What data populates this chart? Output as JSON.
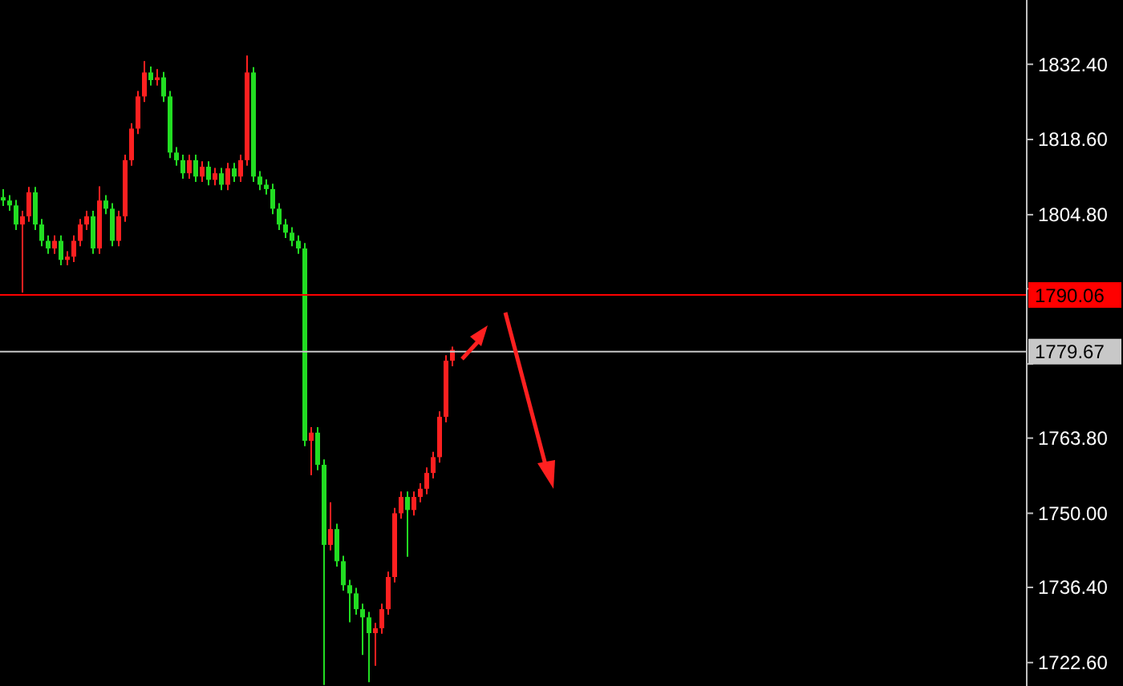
{
  "chart_data": {
    "type": "candlestick",
    "categories": [
      null,
      null,
      null,
      null,
      null,
      null,
      null,
      null,
      null,
      null,
      null,
      null,
      null,
      null,
      null,
      null,
      null,
      null,
      null,
      null,
      null,
      null,
      null,
      null,
      null,
      null,
      null,
      null,
      null,
      null,
      null,
      null,
      null,
      null,
      null,
      null,
      null,
      null,
      null,
      null,
      null,
      null,
      null,
      null,
      null,
      null,
      null,
      null,
      null,
      null,
      null,
      null,
      null,
      null,
      null,
      null,
      null,
      null,
      null,
      null,
      null,
      null,
      null,
      null,
      null,
      null,
      null,
      null,
      null,
      null,
      null,
      null,
      null,
      null,
      null,
      null,
      null,
      null,
      null,
      null,
      null,
      null,
      null,
      null,
      null,
      null,
      null,
      null,
      null,
      null,
      null,
      null,
      null,
      null,
      null,
      null,
      null,
      null,
      null,
      null,
      null,
      null,
      null,
      null,
      null,
      null,
      null,
      null,
      null,
      null,
      null,
      null,
      null,
      null,
      null,
      null,
      null,
      null,
      null,
      null,
      null,
      null,
      null,
      null,
      null,
      null,
      null,
      null,
      null,
      null,
      null,
      null,
      null,
      null,
      null,
      null,
      null,
      null,
      null,
      null,
      null,
      null,
      null,
      null,
      null,
      null,
      null,
      null,
      null,
      null,
      null,
      null,
      null,
      null,
      null,
      null,
      null,
      null,
      null,
      null
    ],
    "ohlc": [
      [
        1808.0,
        1809.5,
        1806.4,
        1807.4
      ],
      [
        1807.4,
        1808.4,
        1805.5,
        1806.5
      ],
      [
        1806.5,
        1807.5,
        1802.0,
        1803.0
      ],
      [
        1803.0,
        1805.5,
        1790.5,
        1804.5
      ],
      [
        1804.5,
        1809.9,
        1803.5,
        1808.9
      ],
      [
        1808.9,
        1809.9,
        1802.0,
        1803.0
      ],
      [
        1803.0,
        1804.0,
        1799.0,
        1800.0
      ],
      [
        1800.0,
        1801.0,
        1797.6,
        1798.6
      ],
      [
        1798.6,
        1801.0,
        1797.6,
        1800.0
      ],
      [
        1800.0,
        1801.0,
        1795.5,
        1796.5
      ],
      [
        1796.5,
        1798.1,
        1795.5,
        1797.1
      ],
      [
        1797.1,
        1801.0,
        1796.1,
        1800.0
      ],
      [
        1800.0,
        1804.0,
        1799.0,
        1803.0
      ],
      [
        1803.0,
        1805.5,
        1802.0,
        1804.5
      ],
      [
        1804.5,
        1805.5,
        1797.6,
        1798.6
      ],
      [
        1798.6,
        1810.0,
        1797.6,
        1807.4
      ],
      [
        1807.4,
        1808.4,
        1804.9,
        1805.9
      ],
      [
        1805.9,
        1806.9,
        1799.0,
        1800.0
      ],
      [
        1800.0,
        1805.5,
        1799.0,
        1804.5
      ],
      [
        1804.5,
        1815.8,
        1803.5,
        1814.8
      ],
      [
        1814.8,
        1821.6,
        1813.8,
        1820.6
      ],
      [
        1820.6,
        1827.5,
        1819.6,
        1826.5
      ],
      [
        1826.5,
        1833.0,
        1825.5,
        1830.9
      ],
      [
        1830.9,
        1832.0,
        1828.5,
        1829.5
      ],
      [
        1829.5,
        1831.5,
        1828.5,
        1830.0
      ],
      [
        1830.0,
        1831.0,
        1825.5,
        1826.5
      ],
      [
        1826.5,
        1827.5,
        1815.2,
        1816.2
      ],
      [
        1816.2,
        1817.2,
        1813.8,
        1814.8
      ],
      [
        1814.8,
        1815.8,
        1811.4,
        1812.4
      ],
      [
        1812.4,
        1815.8,
        1811.4,
        1814.8
      ],
      [
        1814.8,
        1815.8,
        1810.8,
        1811.8
      ],
      [
        1811.8,
        1814.6,
        1810.8,
        1813.6
      ],
      [
        1813.6,
        1814.6,
        1810.2,
        1811.2
      ],
      [
        1811.2,
        1813.4,
        1810.2,
        1812.4
      ],
      [
        1812.4,
        1813.4,
        1809.3,
        1810.3
      ],
      [
        1810.3,
        1814.3,
        1809.3,
        1813.3
      ],
      [
        1813.3,
        1814.3,
        1810.8,
        1811.8
      ],
      [
        1811.8,
        1815.8,
        1810.8,
        1814.8
      ],
      [
        1814.8,
        1834.0,
        1813.8,
        1830.9
      ],
      [
        1830.9,
        1831.9,
        1810.8,
        1811.8
      ],
      [
        1811.8,
        1812.8,
        1809.3,
        1810.3
      ],
      [
        1810.3,
        1811.3,
        1808.5,
        1809.5
      ],
      [
        1809.5,
        1810.5,
        1804.9,
        1805.9
      ],
      [
        1805.9,
        1806.9,
        1802.0,
        1803.0
      ],
      [
        1803.0,
        1804.0,
        1800.5,
        1801.5
      ],
      [
        1801.5,
        1802.5,
        1799.0,
        1800.0
      ],
      [
        1800.0,
        1801.0,
        1797.6,
        1798.6
      ],
      [
        1798.6,
        1799.6,
        1762.3,
        1763.3
      ],
      [
        1763.3,
        1765.8,
        1757.0,
        1764.8
      ],
      [
        1764.8,
        1765.8,
        1757.9,
        1758.9
      ],
      [
        1758.9,
        1759.9,
        1718.5,
        1744.2
      ],
      [
        1744.2,
        1752.0,
        1743.2,
        1747.1
      ],
      [
        1747.1,
        1748.1,
        1740.2,
        1741.2
      ],
      [
        1741.2,
        1742.2,
        1735.8,
        1736.8
      ],
      [
        1736.8,
        1737.8,
        1730.0,
        1735.3
      ],
      [
        1735.3,
        1736.3,
        1731.4,
        1732.4
      ],
      [
        1732.4,
        1733.4,
        1724.0,
        1730.9
      ],
      [
        1730.9,
        1731.9,
        1719.0,
        1728.0
      ],
      [
        1728.0,
        1729.9,
        1722.0,
        1728.9
      ],
      [
        1728.9,
        1733.4,
        1727.9,
        1732.4
      ],
      [
        1732.4,
        1739.3,
        1731.4,
        1738.3
      ],
      [
        1738.3,
        1751.0,
        1737.3,
        1750.0
      ],
      [
        1750.0,
        1754.0,
        1749.0,
        1753.0
      ],
      [
        1753.0,
        1754.0,
        1742.0,
        1750.6
      ],
      [
        1750.6,
        1754.0,
        1749.6,
        1753.0
      ],
      [
        1753.0,
        1755.5,
        1752.0,
        1754.5
      ],
      [
        1754.5,
        1758.4,
        1753.5,
        1757.4
      ],
      [
        1757.4,
        1761.3,
        1756.4,
        1760.3
      ],
      [
        1760.3,
        1768.7,
        1759.3,
        1767.7
      ],
      [
        1767.7,
        1779.0,
        1766.7,
        1778.0
      ],
      [
        1778.0,
        1780.6,
        1777.0,
        1780.0
      ],
      null,
      null,
      null,
      null,
      null,
      null,
      null,
      null,
      null,
      null,
      null,
      null,
      null,
      null,
      null,
      null,
      null,
      null,
      null,
      null,
      null,
      null,
      null,
      null,
      null,
      null,
      null,
      null,
      null,
      null,
      null,
      null,
      null,
      null,
      null,
      null,
      null,
      null,
      null,
      null,
      null,
      null,
      null,
      null,
      null,
      null,
      null,
      null,
      null,
      null,
      null,
      null,
      null,
      null,
      null,
      null,
      null,
      null,
      null,
      null,
      null,
      null,
      null,
      null,
      null,
      null,
      null,
      null,
      null,
      null,
      null,
      null,
      null,
      null,
      null,
      null,
      null,
      null,
      null,
      null,
      null,
      null,
      null,
      null,
      null,
      null,
      null,
      null,
      null
    ],
    "colors": [
      "#22dd22",
      "#22dd22",
      "#22dd22",
      "#ff2020",
      "#ff2020",
      "#22dd22",
      "#22dd22",
      "#22dd22",
      "#ff2020",
      "#22dd22",
      "#ff2020",
      "#ff2020",
      "#ff2020",
      "#ff2020",
      "#22dd22",
      "#ff2020",
      "#22dd22",
      "#22dd22",
      "#ff2020",
      "#ff2020",
      "#ff2020",
      "#ff2020",
      "#ff2020",
      "#22dd22",
      "#ff2020",
      "#22dd22",
      "#22dd22",
      "#22dd22",
      "#22dd22",
      "#ff2020",
      "#22dd22",
      "#ff2020",
      "#22dd22",
      "#ff2020",
      "#22dd22",
      "#ff2020",
      "#22dd22",
      "#ff2020",
      "#ff2020",
      "#22dd22",
      "#22dd22",
      "#22dd22",
      "#22dd22",
      "#22dd22",
      "#22dd22",
      "#22dd22",
      "#22dd22",
      "#22dd22",
      "#ff2020",
      "#22dd22",
      "#22dd22",
      "#ff2020",
      "#22dd22",
      "#22dd22",
      "#22dd22",
      "#22dd22",
      "#22dd22",
      "#22dd22",
      "#ff2020",
      "#ff2020",
      "#ff2020",
      "#ff2020",
      "#ff2020",
      "#22dd22",
      "#ff2020",
      "#ff2020",
      "#ff2020",
      "#ff2020",
      "#ff2020",
      "#ff2020",
      "#ff2020",
      null,
      null,
      null,
      null,
      null,
      null,
      null,
      null,
      null,
      null,
      null,
      null,
      null,
      null,
      null,
      null,
      null,
      null,
      null,
      null,
      null,
      null,
      null,
      null,
      null,
      null,
      null,
      null,
      null,
      null,
      null,
      null,
      null,
      null,
      null,
      null,
      null,
      null,
      null,
      null,
      null,
      null,
      null,
      null,
      null,
      null,
      null,
      null,
      null,
      null,
      null,
      null,
      null,
      null,
      null,
      null,
      null,
      null,
      null,
      null,
      null,
      null,
      null,
      null,
      null,
      null,
      null,
      null,
      null,
      null,
      null,
      null,
      null,
      null,
      null,
      null,
      null,
      null,
      null,
      null,
      null,
      null,
      null,
      null,
      null,
      null,
      null,
      null,
      null
    ],
    "ylim": [
      1718.3,
      1844.2
    ],
    "yticks": [
      {
        "value": 1832.4,
        "label": "1832.40"
      },
      {
        "value": 1818.6,
        "label": "1818.60"
      },
      {
        "value": 1804.8,
        "label": "1804.80"
      },
      {
        "value": 1791.2,
        "label": null
      },
      {
        "value": 1777.4,
        "label": null
      },
      {
        "value": 1763.8,
        "label": "1763.80"
      },
      {
        "value": 1750.0,
        "label": "1750.00"
      },
      {
        "value": 1736.4,
        "label": "1736.40"
      },
      {
        "value": 1722.6,
        "label": "1722.60"
      }
    ],
    "ref_lines": [
      {
        "axis": "y",
        "value": 1790.06,
        "label": "1790.06",
        "color": "#ff0000"
      },
      {
        "axis": "y",
        "value": 1779.67,
        "label": "1779.67",
        "color": "#c8c8c8"
      }
    ]
  }
}
